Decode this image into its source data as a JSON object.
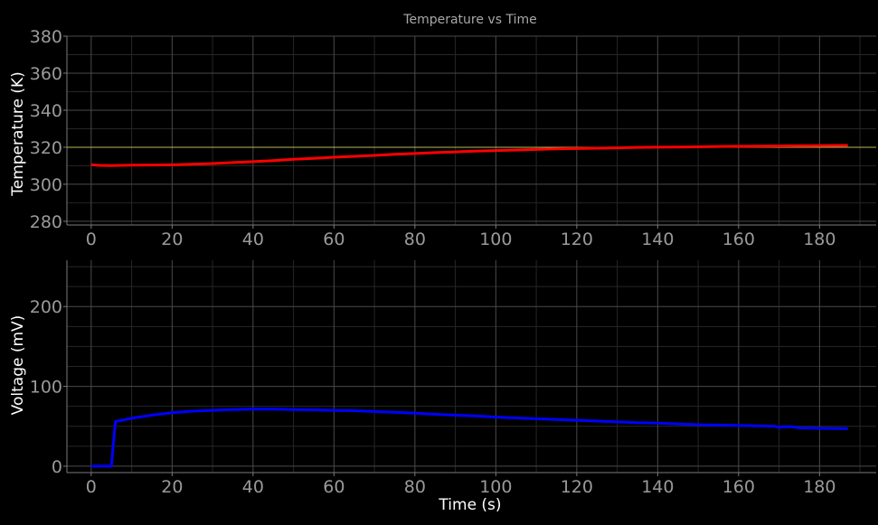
{
  "chart_data": [
    {
      "type": "line",
      "title": "Temperature vs Time",
      "xlabel": "",
      "ylabel": "Temperature (K)",
      "xlim": [
        -6,
        194
      ],
      "ylim": [
        278,
        380
      ],
      "xticks": [
        0,
        20,
        40,
        60,
        80,
        100,
        120,
        140,
        160,
        180
      ],
      "yticks": [
        280,
        300,
        320,
        340,
        360,
        380
      ],
      "grid": true,
      "reference_line": {
        "y": 320,
        "color": "#b8b85a"
      },
      "series": [
        {
          "color": "#ff0000",
          "x": [
            0,
            2,
            5,
            10,
            15,
            20,
            25,
            30,
            35,
            40,
            45,
            50,
            55,
            60,
            65,
            70,
            75,
            80,
            85,
            90,
            95,
            100,
            105,
            110,
            115,
            120,
            125,
            130,
            135,
            140,
            145,
            150,
            155,
            160,
            165,
            170,
            175,
            180,
            187
          ],
          "y": [
            310.5,
            310.2,
            310.1,
            310.3,
            310.4,
            310.5,
            310.8,
            311.2,
            311.7,
            312.2,
            312.8,
            313.5,
            314.0,
            314.6,
            315.1,
            315.6,
            316.2,
            316.6,
            317.1,
            317.5,
            317.9,
            318.2,
            318.5,
            318.8,
            319.1,
            319.3,
            319.5,
            319.7,
            319.9,
            320.0,
            320.1,
            320.2,
            320.4,
            320.5,
            320.6,
            320.7,
            320.8,
            320.9,
            321.0
          ]
        }
      ]
    },
    {
      "type": "line",
      "title": "",
      "xlabel": "Time (s)",
      "ylabel": "Voltage (mV)",
      "xlim": [
        -6,
        194
      ],
      "ylim": [
        -8,
        258
      ],
      "xticks": [
        0,
        20,
        40,
        60,
        80,
        100,
        120,
        140,
        160,
        180
      ],
      "yticks": [
        0,
        100,
        200
      ],
      "grid": true,
      "series": [
        {
          "color": "#0000ff",
          "x": [
            0,
            2,
            4,
            5,
            5.5,
            6,
            10,
            15,
            20,
            25,
            30,
            35,
            40,
            45,
            50,
            55,
            60,
            65,
            70,
            75,
            80,
            85,
            90,
            95,
            100,
            105,
            110,
            115,
            120,
            125,
            130,
            135,
            140,
            145,
            150,
            155,
            160,
            165,
            169,
            170,
            171,
            173,
            175,
            180,
            187
          ],
          "y": [
            0,
            0,
            0,
            0,
            30,
            56,
            60,
            64,
            67,
            69,
            70,
            71,
            71.5,
            71.5,
            71,
            70.5,
            70,
            69.5,
            68.5,
            67.5,
            66.5,
            65,
            64,
            63,
            61.5,
            60.5,
            59.5,
            58.5,
            57.5,
            56.5,
            55.5,
            54.5,
            54,
            53,
            52,
            51.5,
            51,
            50.5,
            50,
            48.5,
            49.5,
            49.5,
            48,
            47.5,
            47
          ]
        }
      ]
    }
  ]
}
